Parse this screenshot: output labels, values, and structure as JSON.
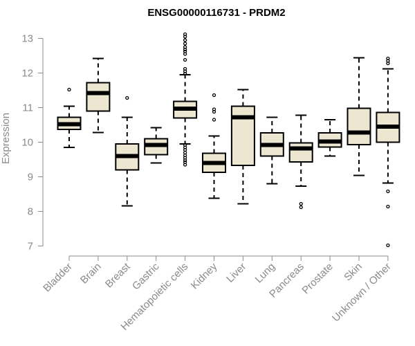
{
  "chart_data": {
    "type": "boxplot",
    "title": "ENSG00000116731 - PRDM2",
    "xlabel": "",
    "ylabel": "Expression",
    "ylim": [
      6.95,
      13.15
    ],
    "yticks": [
      7,
      8,
      9,
      10,
      11,
      12,
      13
    ],
    "grid": false,
    "box_color": "#ede6d0",
    "categories": [
      "Bladder",
      "Brain",
      "Breast",
      "Gastric",
      "Hematopoietic cells",
      "Kidney",
      "Liver",
      "Lung",
      "Pancreas",
      "Prostate",
      "Skin",
      "Unknown / Other"
    ],
    "boxes": [
      {
        "name": "Bladder",
        "whisker_low": 9.85,
        "q1": 10.37,
        "median": 10.52,
        "q3": 10.72,
        "whisker_high": 11.04,
        "outliers": [
          11.52
        ]
      },
      {
        "name": "Brain",
        "whisker_low": 10.28,
        "q1": 10.9,
        "median": 11.42,
        "q3": 11.72,
        "whisker_high": 12.42,
        "outliers": []
      },
      {
        "name": "Breast",
        "whisker_low": 8.16,
        "q1": 9.2,
        "median": 9.6,
        "q3": 9.95,
        "whisker_high": 10.72,
        "outliers": [
          11.28
        ]
      },
      {
        "name": "Gastric",
        "whisker_low": 9.4,
        "q1": 9.64,
        "median": 9.92,
        "q3": 10.1,
        "whisker_high": 10.42,
        "outliers": []
      },
      {
        "name": "Hematopoietic cells",
        "whisker_low": 9.95,
        "q1": 10.7,
        "median": 10.97,
        "q3": 11.18,
        "whisker_high": 11.95,
        "outliers": [
          9.35,
          9.42,
          9.48,
          9.55,
          9.62,
          9.7,
          9.78,
          9.85,
          9.92,
          11.98,
          12.05,
          12.12,
          12.38,
          12.55,
          12.62,
          12.68,
          12.75,
          12.85,
          12.95,
          13.05,
          13.12
        ]
      },
      {
        "name": "Kidney",
        "whisker_low": 8.38,
        "q1": 9.13,
        "median": 9.4,
        "q3": 9.68,
        "whisker_high": 10.18,
        "outliers": [
          10.65,
          10.88,
          10.95,
          11.36
        ]
      },
      {
        "name": "Liver",
        "whisker_low": 8.22,
        "q1": 9.33,
        "median": 10.72,
        "q3": 11.04,
        "whisker_high": 11.52,
        "outliers": []
      },
      {
        "name": "Lung",
        "whisker_low": 8.8,
        "q1": 9.6,
        "median": 9.92,
        "q3": 10.27,
        "whisker_high": 10.72,
        "outliers": []
      },
      {
        "name": "Pancreas",
        "whisker_low": 8.73,
        "q1": 9.43,
        "median": 9.82,
        "q3": 9.98,
        "whisker_high": 10.78,
        "outliers": [
          8.12,
          8.22
        ]
      },
      {
        "name": "Prostate",
        "whisker_low": 9.6,
        "q1": 9.86,
        "median": 10.02,
        "q3": 10.27,
        "whisker_high": 10.65,
        "outliers": []
      },
      {
        "name": "Skin",
        "whisker_low": 9.04,
        "q1": 9.93,
        "median": 10.28,
        "q3": 10.98,
        "whisker_high": 12.44,
        "outliers": []
      },
      {
        "name": "Unknown / Other",
        "whisker_low": 8.82,
        "q1": 10.0,
        "median": 10.45,
        "q3": 10.86,
        "whisker_high": 12.12,
        "outliers": [
          7.02,
          8.14,
          8.58,
          12.28,
          12.35,
          12.42
        ]
      }
    ]
  }
}
